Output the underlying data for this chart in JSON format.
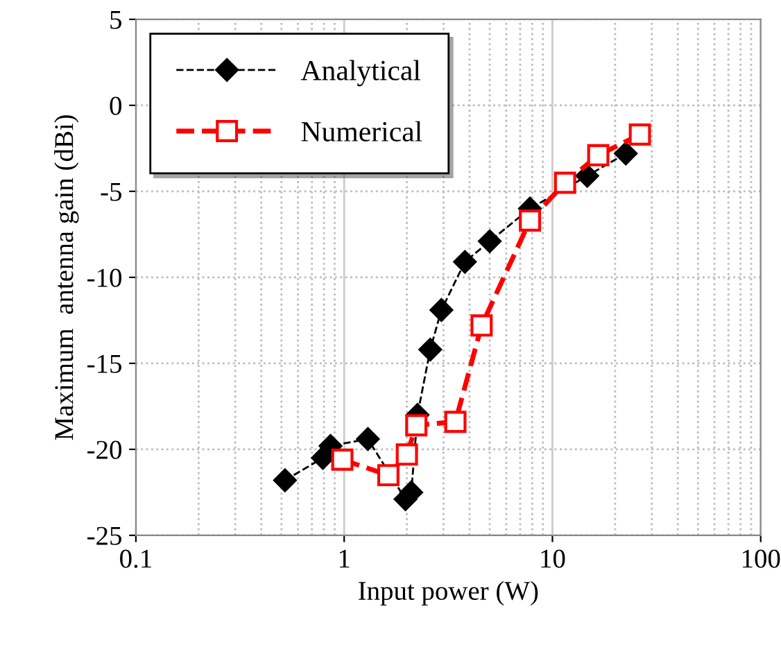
{
  "chart_data": {
    "type": "line",
    "xlabel": "Input power (W)",
    "ylabel": "Maximum  antenna gain (dBi)",
    "log": "x",
    "grid": true,
    "legend": "top left",
    "xlim": [
      0.1,
      100
    ],
    "xticks": [
      0.1,
      1,
      10,
      100
    ],
    "ylim": [
      -25,
      5
    ],
    "yticks": [
      -25,
      -20,
      -15,
      -10,
      -5,
      0,
      5
    ],
    "series": [
      {
        "name": "Analytical",
        "color": "#000000",
        "marker": "diamond",
        "line_style": "dashed",
        "x": [
          0.52,
          0.79,
          0.86,
          1.3,
          1.97,
          2.1,
          2.25,
          2.59,
          2.93,
          3.8,
          5.0,
          7.8,
          14.7,
          22.5
        ],
        "values": [
          -21.8,
          -20.5,
          -19.8,
          -19.4,
          -22.9,
          -22.5,
          -18.0,
          -14.2,
          -11.9,
          -9.1,
          -7.9,
          -6.0,
          -4.1,
          -2.8
        ]
      },
      {
        "name": "Numerical",
        "color": "#ff0000",
        "marker": "square",
        "line_style": "dashed",
        "x": [
          0.98,
          1.63,
          2.0,
          2.22,
          3.42,
          4.57,
          7.8,
          11.5,
          16.6,
          26.3
        ],
        "values": [
          -20.6,
          -21.5,
          -20.3,
          -18.6,
          -18.4,
          -12.8,
          -6.7,
          -4.5,
          -2.9,
          -1.7
        ]
      }
    ]
  }
}
